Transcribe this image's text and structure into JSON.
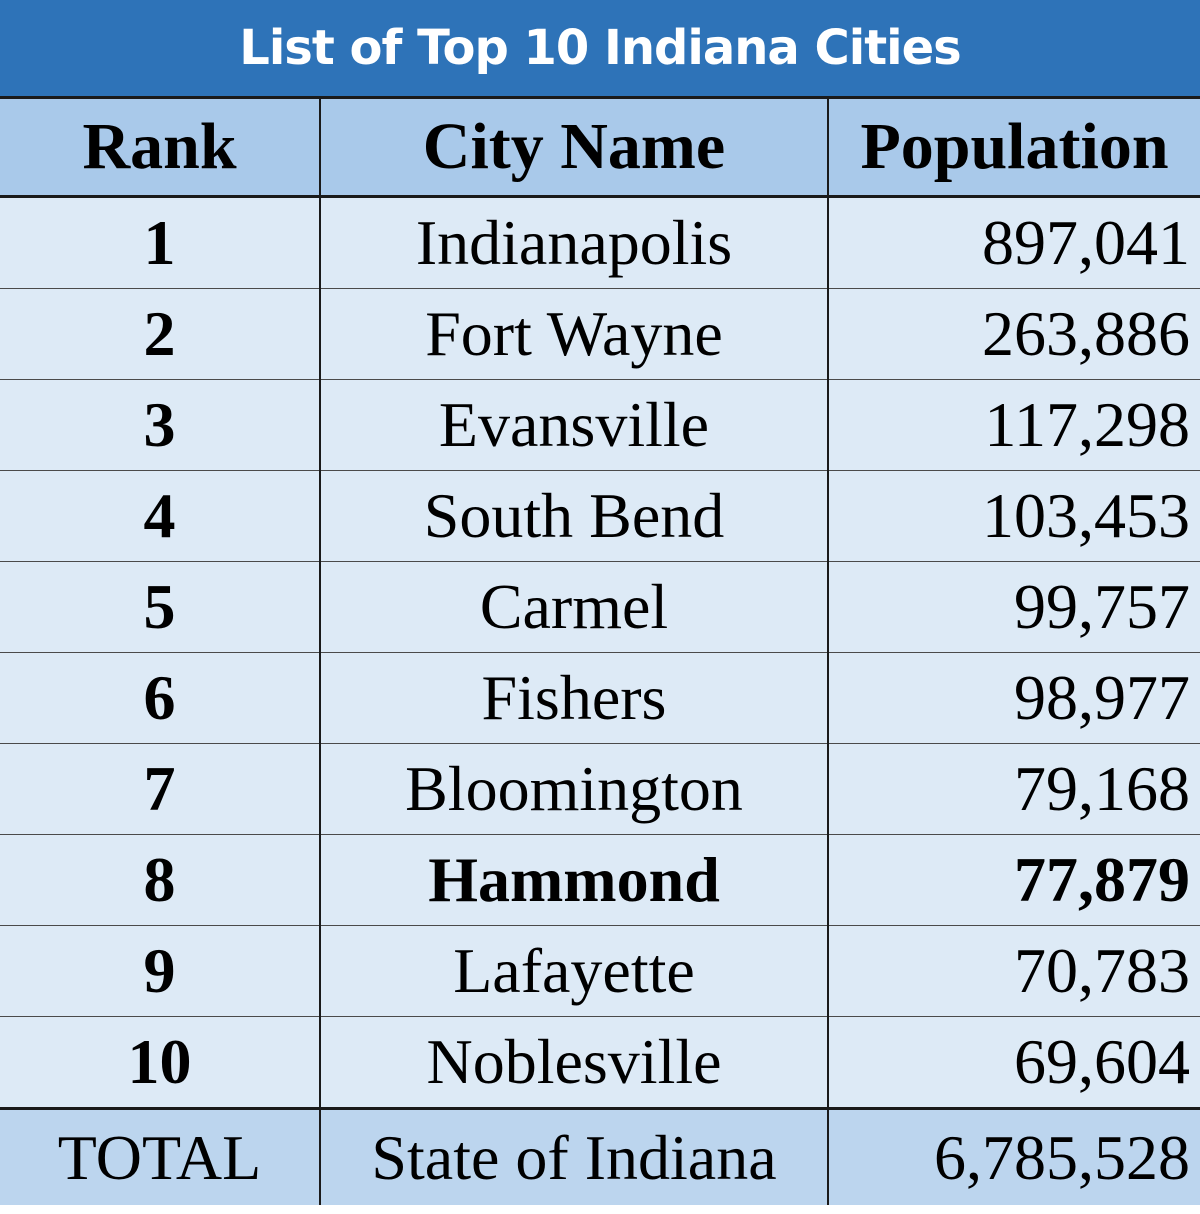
{
  "title": "List of Top 10 Indiana Cities",
  "headers": {
    "rank": "Rank",
    "city": "City Name",
    "population": "Population"
  },
  "rows": [
    {
      "rank": "1",
      "city": "Indianapolis",
      "population": "897,041"
    },
    {
      "rank": "2",
      "city": "Fort Wayne",
      "population": "263,886"
    },
    {
      "rank": "3",
      "city": "Evansville",
      "population": "117,298"
    },
    {
      "rank": "4",
      "city": "South Bend",
      "population": "103,453"
    },
    {
      "rank": "5",
      "city": "Carmel",
      "population": "99,757"
    },
    {
      "rank": "6",
      "city": "Fishers",
      "population": "98,977"
    },
    {
      "rank": "7",
      "city": "Bloomington",
      "population": "79,168"
    },
    {
      "rank": "8",
      "city": "Hammond",
      "population": "77,879",
      "emphasized": true
    },
    {
      "rank": "9",
      "city": "Lafayette",
      "population": "70,783"
    },
    {
      "rank": "10",
      "city": "Noblesville",
      "population": "69,604"
    }
  ],
  "total": {
    "label": "TOTAL",
    "city": "State of Indiana",
    "population": "6,785,528"
  },
  "colors": {
    "title_bar": "#2e73b8",
    "header_row": "#a9c9ea",
    "body_rows": "#ddeaf6",
    "total_row": "#bcd5ee"
  }
}
